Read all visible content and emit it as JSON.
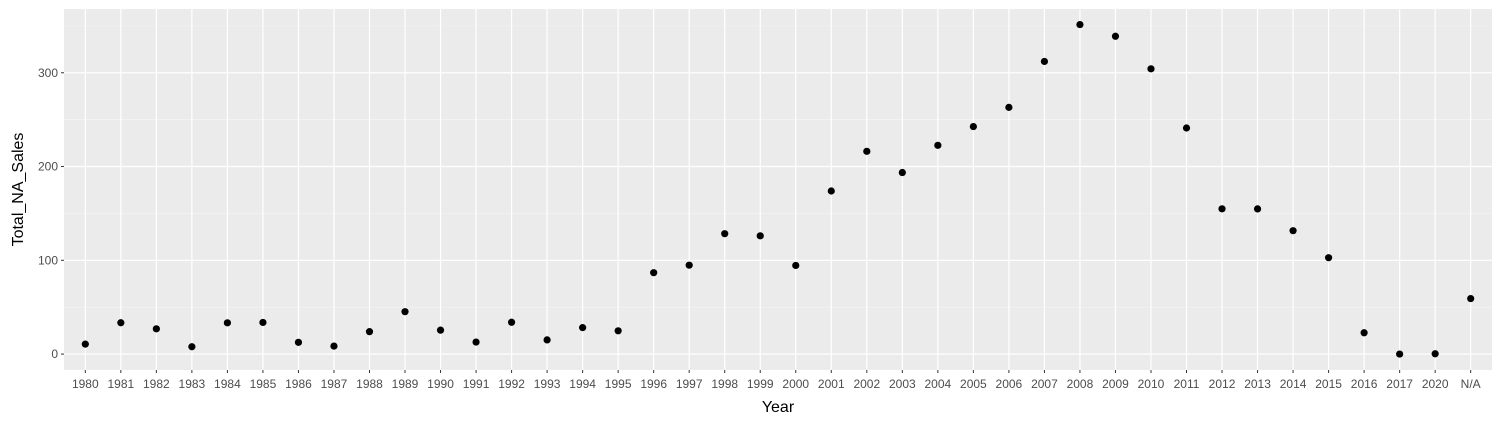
{
  "chart_data": {
    "type": "scatter",
    "title": "",
    "xlabel": "Year",
    "ylabel": "Total_NA_Sales",
    "categories": [
      "1980",
      "1981",
      "1982",
      "1983",
      "1984",
      "1985",
      "1986",
      "1987",
      "1988",
      "1989",
      "1990",
      "1991",
      "1992",
      "1993",
      "1994",
      "1995",
      "1996",
      "1997",
      "1998",
      "1999",
      "2000",
      "2001",
      "2002",
      "2003",
      "2004",
      "2005",
      "2006",
      "2007",
      "2008",
      "2009",
      "2010",
      "2011",
      "2012",
      "2013",
      "2014",
      "2015",
      "2016",
      "2017",
      "2020",
      "N/A"
    ],
    "values": [
      10.6,
      33.4,
      26.9,
      7.8,
      33.3,
      33.7,
      12.5,
      8.5,
      23.9,
      45.2,
      25.5,
      12.8,
      33.9,
      15.1,
      28.2,
      24.8,
      86.8,
      94.8,
      128.4,
      126.1,
      94.5,
      173.9,
      216.2,
      193.6,
      222.6,
      242.6,
      263.1,
      312.1,
      351.4,
      338.9,
      304.2,
      241.1,
      154.9,
      154.8,
      131.6,
      102.8,
      22.7,
      0.0,
      0.3,
      59.2
    ],
    "ylim": [
      -17,
      368
    ],
    "yticks": [
      0,
      100,
      200,
      300
    ],
    "grid": true,
    "legend": "none",
    "colors": {
      "panel_background": "#ebebeb",
      "grid_major": "#ffffff",
      "grid_minor": "#f5f5f5",
      "point": "#000000",
      "tick_text": "#4d4d4d",
      "axis_title": "#000000"
    }
  }
}
